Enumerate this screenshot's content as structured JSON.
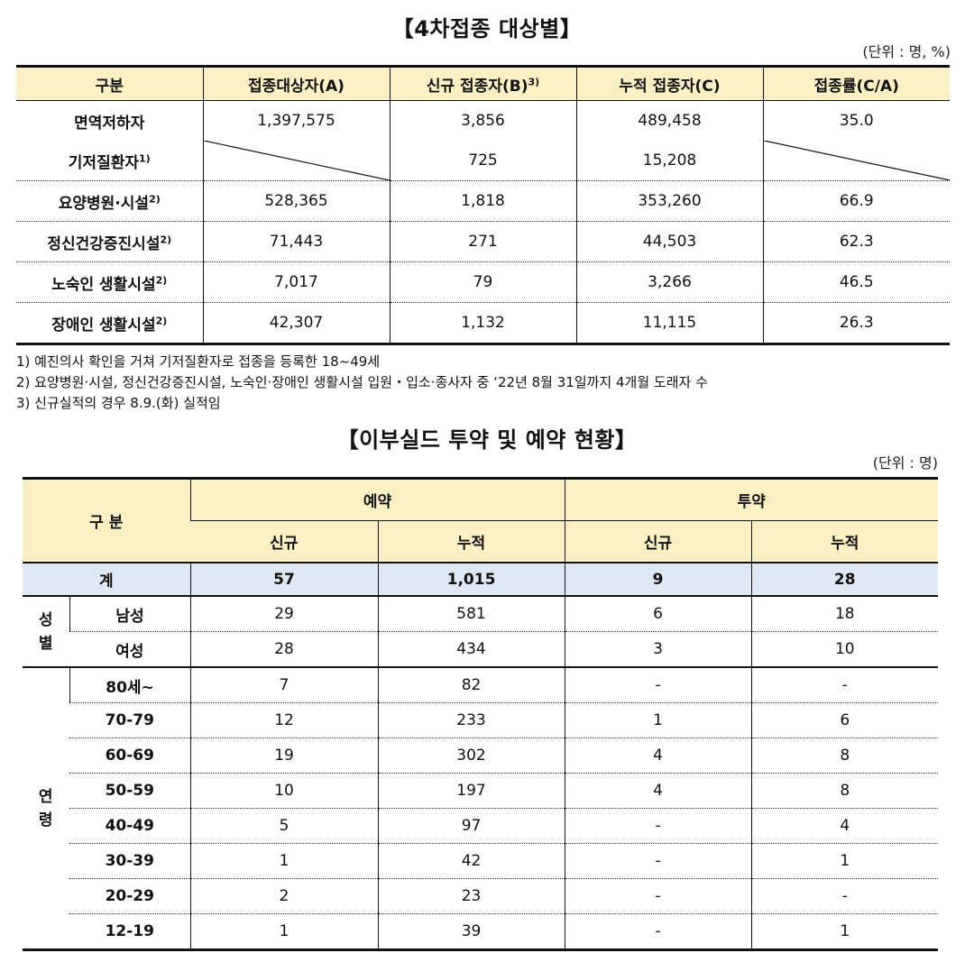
{
  "table1": {
    "title": "【4차접종 대상별】",
    "unit": "(단위 : 명, %)",
    "headers": {
      "c0": "구분",
      "c1": "접종대상자(A)",
      "c2": "신규 접종자(B)",
      "c2_sup": "3)",
      "c3": "누적 접종자(C)",
      "c4": "접종률(C/A)"
    },
    "rows": [
      {
        "label": "면역저하자",
        "sup": "",
        "a": "1,397,575",
        "b": "3,856",
        "c": "489,458",
        "rate": "35.0"
      },
      {
        "label": "기저질환자",
        "sup": "1)",
        "a": "",
        "b": "725",
        "c": "15,208",
        "rate": ""
      },
      {
        "label": "요양병원·시설",
        "sup": "2)",
        "a": "528,365",
        "b": "1,818",
        "c": "353,260",
        "rate": "66.9"
      },
      {
        "label": "정신건강증진시설",
        "sup": "2)",
        "a": "71,443",
        "b": "271",
        "c": "44,503",
        "rate": "62.3"
      },
      {
        "label": "노숙인 생활시설",
        "sup": "2)",
        "a": "7,017",
        "b": "79",
        "c": "3,266",
        "rate": "46.5"
      },
      {
        "label": "장애인 생활시설",
        "sup": "2)",
        "a": "42,307",
        "b": "1,132",
        "c": "11,115",
        "rate": "26.3"
      }
    ],
    "notes": [
      "1) 예진의사 확인을 거쳐 기저질환자로 접종을 등록한 18~49세",
      "2) 요양병원·시설, 정신건강증진시설, 노숙인·장애인 생활시설 입원・입소·종사자 중 ‘22년 8월 31일까지 4개월 도래자 수",
      "3) 신규실적의 경우 8.9.(화) 실적임"
    ]
  },
  "table2": {
    "title": "【이부실드 투약 및 예약 현황】",
    "unit": "(단위 : 명)",
    "headers": {
      "category": "구 분",
      "reservation": "예약",
      "administration": "투약",
      "new": "신규",
      "cumulative": "누적"
    },
    "total": {
      "label": "계",
      "res_new": "57",
      "res_cum": "1,015",
      "adm_new": "9",
      "adm_cum": "28"
    },
    "gender_group": "성\n별",
    "gender": [
      {
        "label": "남성",
        "res_new": "29",
        "res_cum": "581",
        "adm_new": "6",
        "adm_cum": "18"
      },
      {
        "label": "여성",
        "res_new": "28",
        "res_cum": "434",
        "adm_new": "3",
        "adm_cum": "10"
      }
    ],
    "age_group": "연\n령",
    "age": [
      {
        "label": "80세~",
        "res_new": "7",
        "res_cum": "82",
        "adm_new": "-",
        "adm_cum": "-"
      },
      {
        "label": "70-79",
        "res_new": "12",
        "res_cum": "233",
        "adm_new": "1",
        "adm_cum": "6"
      },
      {
        "label": "60-69",
        "res_new": "19",
        "res_cum": "302",
        "adm_new": "4",
        "adm_cum": "8"
      },
      {
        "label": "50-59",
        "res_new": "10",
        "res_cum": "197",
        "adm_new": "4",
        "adm_cum": "8"
      },
      {
        "label": "40-49",
        "res_new": "5",
        "res_cum": "97",
        "adm_new": "-",
        "adm_cum": "4"
      },
      {
        "label": "30-39",
        "res_new": "1",
        "res_cum": "42",
        "adm_new": "-",
        "adm_cum": "1"
      },
      {
        "label": "20-29",
        "res_new": "2",
        "res_cum": "23",
        "adm_new": "-",
        "adm_cum": "-"
      },
      {
        "label": "12-19",
        "res_new": "1",
        "res_cum": "39",
        "adm_new": "-",
        "adm_cum": "1"
      }
    ]
  }
}
